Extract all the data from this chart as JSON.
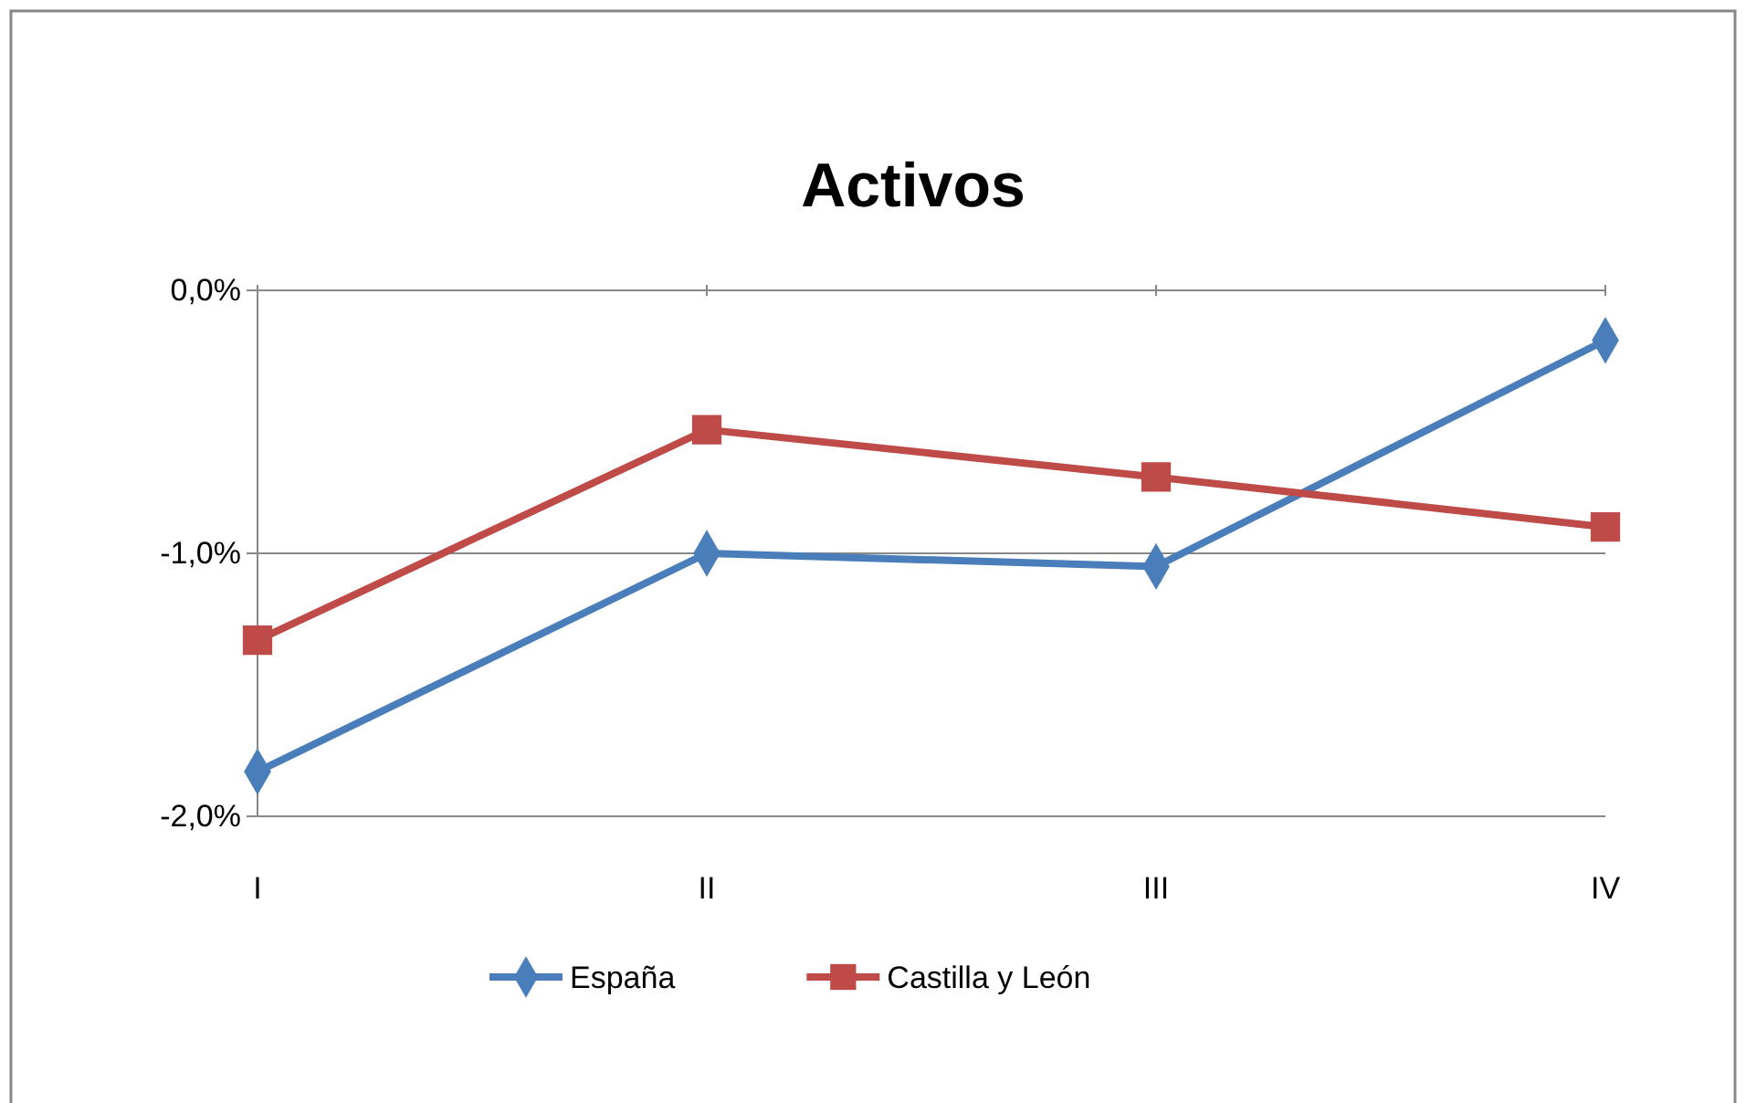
{
  "chart_data": {
    "type": "line",
    "title": "Activos",
    "categories": [
      "I",
      "II",
      "III",
      "IV"
    ],
    "series": [
      {
        "name": "España",
        "color": "#4a7ebb",
        "marker": "diamond",
        "values": [
          -1.83,
          -1.0,
          -1.05,
          -0.19
        ]
      },
      {
        "name": "Castilla y León",
        "color": "#be4b48",
        "marker": "square",
        "values": [
          -1.33,
          -0.53,
          -0.71,
          -0.9
        ]
      }
    ],
    "ylim": [
      -2,
      0
    ],
    "yticks": [
      {
        "value": -2,
        "label": "-2,0%"
      },
      {
        "value": -1,
        "label": "-1,0%"
      },
      {
        "value": 0,
        "label": "0,0%"
      }
    ],
    "grid": "y",
    "legend": "bottom",
    "line_style": "solid"
  }
}
